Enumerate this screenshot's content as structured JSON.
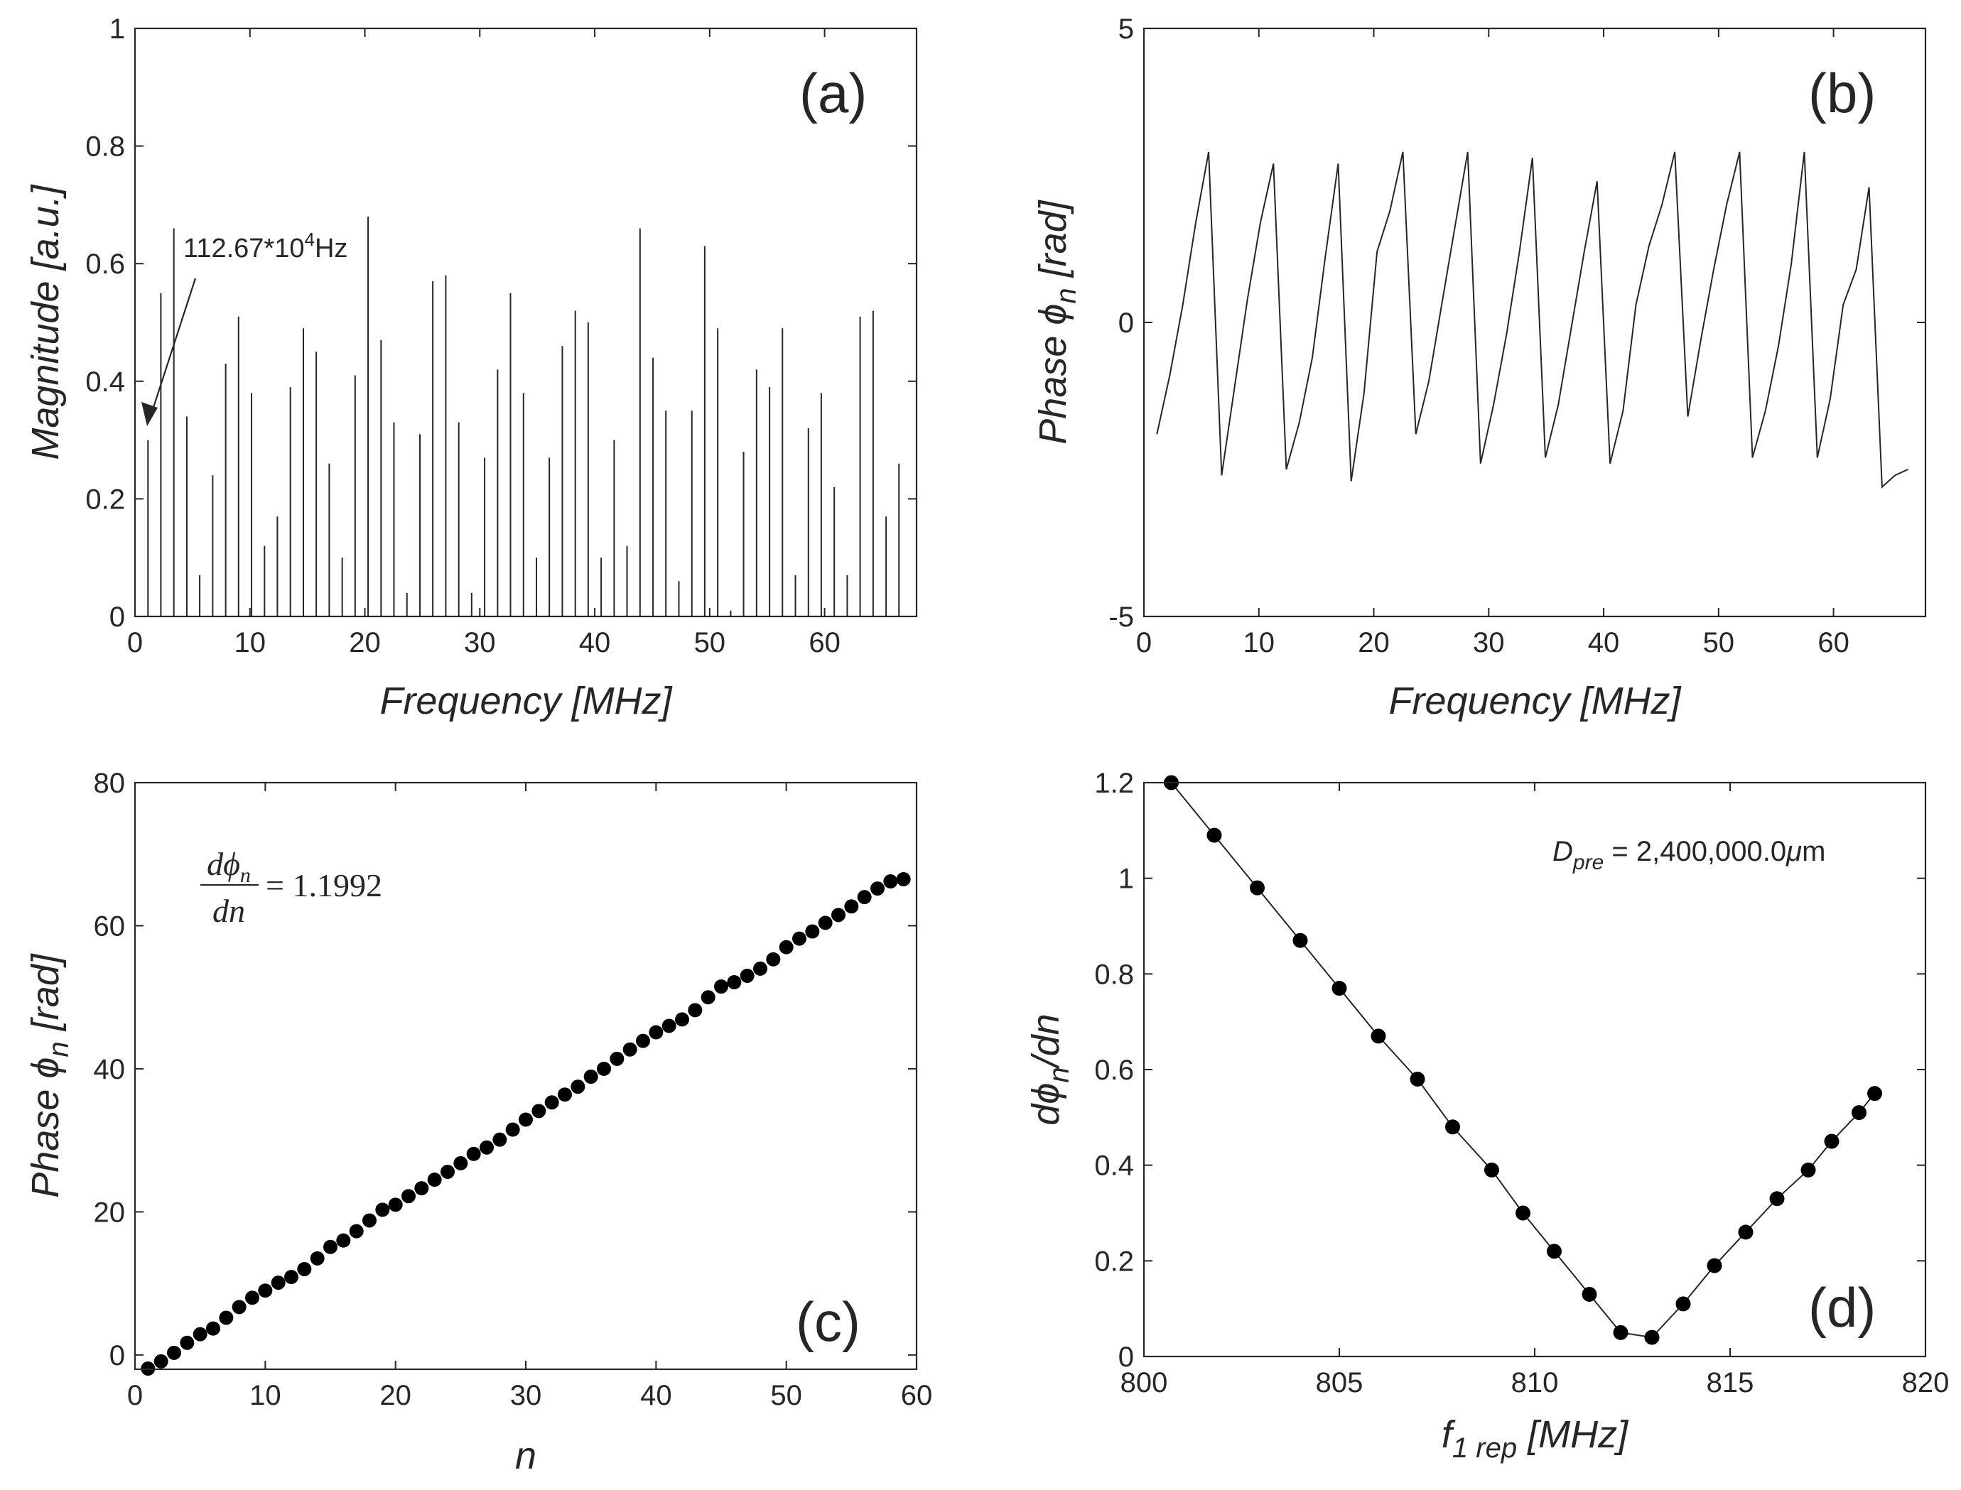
{
  "chart_data": [
    {
      "id": "a",
      "type": "bar",
      "panel_label": "(a)",
      "xlabel": "Frequency [MHz]",
      "ylabel": "Magnitude [a.u.]",
      "xlim": [
        0,
        68
      ],
      "ylim": [
        0,
        1
      ],
      "xticks": [
        0,
        10,
        20,
        30,
        40,
        50,
        60
      ],
      "yticks": [
        0,
        0.2,
        0.4,
        0.6,
        0.8,
        1
      ],
      "ytick_labels": [
        "0",
        "0.2",
        "0.4",
        "0.6",
        "0.8",
        "1"
      ],
      "annotation": {
        "base": "112.67*10",
        "sup": "4",
        "unit": "Hz",
        "x": 1.13,
        "y": 0.32
      },
      "x": [
        1.13,
        2.25,
        3.38,
        4.51,
        5.63,
        6.76,
        7.89,
        9.01,
        10.14,
        11.27,
        12.39,
        13.52,
        14.65,
        15.77,
        16.9,
        18.03,
        19.15,
        20.28,
        21.41,
        22.53,
        23.66,
        24.79,
        25.91,
        27.04,
        28.17,
        29.29,
        30.42,
        31.55,
        32.67,
        33.8,
        34.93,
        36.05,
        37.18,
        38.31,
        39.43,
        40.56,
        41.69,
        42.81,
        43.94,
        45.07,
        46.19,
        47.32,
        48.45,
        49.57,
        50.7,
        51.83,
        52.95,
        54.08,
        55.21,
        56.33,
        57.46,
        58.59,
        59.71,
        60.84,
        61.97,
        63.09,
        64.22,
        65.35,
        66.47
      ],
      "values": [
        0.3,
        0.55,
        0.66,
        0.34,
        0.07,
        0.24,
        0.43,
        0.51,
        0.38,
        0.12,
        0.17,
        0.39,
        0.49,
        0.45,
        0.26,
        0.1,
        0.41,
        0.68,
        0.47,
        0.33,
        0.04,
        0.31,
        0.57,
        0.58,
        0.33,
        0.04,
        0.27,
        0.42,
        0.55,
        0.38,
        0.1,
        0.27,
        0.46,
        0.52,
        0.5,
        0.1,
        0.3,
        0.12,
        0.66,
        0.44,
        0.35,
        0.06,
        0.35,
        0.63,
        0.49,
        0.01,
        0.28,
        0.42,
        0.39,
        0.49,
        0.07,
        0.32,
        0.38,
        0.22,
        0.07,
        0.51,
        0.52,
        0.17,
        0.26
      ]
    },
    {
      "id": "b",
      "type": "line",
      "panel_label": "(b)",
      "xlabel": "Frequency [MHz]",
      "ylabel_main": "Phase ",
      "ylabel_sym": "ϕ",
      "ylabel_sub": "n",
      "ylabel_unit": " [rad]",
      "xlim": [
        0,
        68
      ],
      "ylim": [
        -5,
        5
      ],
      "xticks": [
        0,
        10,
        20,
        30,
        40,
        50,
        60
      ],
      "yticks": [
        -5,
        0,
        5
      ],
      "x": [
        1.13,
        2.25,
        3.38,
        4.51,
        5.63,
        6.76,
        7.89,
        9.01,
        10.14,
        11.27,
        12.39,
        13.52,
        14.65,
        15.77,
        16.9,
        18.03,
        19.15,
        20.28,
        21.41,
        22.53,
        23.66,
        24.79,
        25.91,
        27.04,
        28.17,
        29.29,
        30.42,
        31.55,
        32.67,
        33.8,
        34.93,
        36.05,
        37.18,
        38.31,
        39.43,
        40.56,
        41.69,
        42.81,
        43.94,
        45.07,
        46.19,
        47.32,
        48.45,
        49.57,
        50.7,
        51.83,
        52.95,
        54.08,
        55.21,
        56.33,
        57.46,
        58.59,
        59.71,
        60.84,
        61.97,
        63.09,
        64.22,
        65.35,
        66.47
      ],
      "y": [
        -1.9,
        -0.9,
        0.3,
        1.7,
        2.9,
        -2.6,
        -1.1,
        0.4,
        1.7,
        2.7,
        -2.5,
        -1.7,
        -0.6,
        1.1,
        2.7,
        -2.7,
        -1.2,
        1.2,
        1.9,
        2.9,
        -1.9,
        -1.0,
        0.3,
        1.6,
        2.9,
        -2.4,
        -1.4,
        -0.2,
        1.2,
        2.8,
        -2.3,
        -1.4,
        -0.1,
        1.2,
        2.4,
        -2.4,
        -1.5,
        0.3,
        1.3,
        2.0,
        2.9,
        -1.6,
        -0.3,
        0.9,
        2.0,
        2.9,
        -2.3,
        -1.5,
        -0.4,
        1.0,
        2.9,
        -2.3,
        -1.3,
        0.3,
        0.9,
        2.3,
        -2.8,
        -2.6,
        -2.5
      ]
    },
    {
      "id": "c",
      "type": "scatter",
      "panel_label": "(c)",
      "xlabel": "n",
      "ylabel_main": "Phase ",
      "ylabel_sym": "ϕ",
      "ylabel_sub": "n",
      "ylabel_unit": " [rad]",
      "xlim": [
        0,
        60
      ],
      "ylim": [
        -2,
        80
      ],
      "xticks": [
        0,
        10,
        20,
        30,
        40,
        50,
        60
      ],
      "yticks": [
        0,
        20,
        40,
        60,
        80
      ],
      "equation": {
        "num_d": "d",
        "num_phi": "ϕ",
        "num_sub": "n",
        "den": "dn",
        "rhs": "= 1.1992"
      },
      "x": [
        1,
        2,
        3,
        4,
        5,
        6,
        7,
        8,
        9,
        10,
        11,
        12,
        13,
        14,
        15,
        16,
        17,
        18,
        19,
        20,
        21,
        22,
        23,
        24,
        25,
        26,
        27,
        28,
        29,
        30,
        31,
        32,
        33,
        34,
        35,
        36,
        37,
        38,
        39,
        40,
        41,
        42,
        43,
        44,
        45,
        46,
        47,
        48,
        49,
        50,
        51,
        52,
        53,
        54,
        55,
        56,
        57,
        58,
        59
      ],
      "y": [
        -1.9,
        -0.9,
        0.3,
        1.7,
        2.9,
        3.7,
        5.2,
        6.7,
        8.0,
        9.0,
        10.1,
        10.9,
        12.0,
        13.5,
        15.1,
        16.0,
        17.3,
        18.8,
        20.3,
        21.0,
        22.2,
        23.3,
        24.5,
        25.6,
        26.8,
        28.1,
        29.0,
        30.1,
        31.5,
        32.9,
        34.1,
        35.3,
        36.4,
        37.5,
        38.9,
        40.0,
        41.4,
        42.7,
        43.9,
        45.1,
        46.0,
        46.9,
        48.2,
        50.0,
        51.5,
        52.1,
        53.0,
        54.0,
        55.3,
        57.0,
        58.2,
        59.2,
        60.4,
        61.5,
        62.7,
        64.0,
        65.2,
        66.2,
        66.5
      ]
    },
    {
      "id": "d",
      "type": "line",
      "markers": true,
      "panel_label": "(d)",
      "xlabel_main": "f",
      "xlabel_sub": "1 rep",
      "xlabel_unit": " [MHz]",
      "ylabel_pre": "d",
      "ylabel_sym": "ϕ",
      "ylabel_sub": "n",
      "ylabel_post": "/dn",
      "xlim": [
        800,
        820
      ],
      "ylim": [
        0,
        1.2
      ],
      "xticks": [
        800,
        805,
        810,
        815,
        820
      ],
      "yticks": [
        0,
        0.2,
        0.4,
        0.6,
        0.8,
        1,
        1.2
      ],
      "ytick_labels": [
        "0",
        "0.2",
        "0.4",
        "0.6",
        "0.8",
        "1",
        "1.2"
      ],
      "annotation": {
        "main": "D",
        "sub": "pre",
        "rest": " = 2,400,000.0",
        "mu": "μ",
        "unit": "m"
      },
      "x": [
        800.7,
        801.8,
        802.9,
        804.0,
        805.0,
        806.0,
        807.0,
        807.9,
        808.9,
        809.7,
        810.5,
        811.4,
        812.2,
        813.0,
        813.8,
        814.6,
        815.4,
        816.2,
        817.0,
        817.6,
        818.3,
        818.7
      ],
      "y": [
        1.2,
        1.09,
        0.98,
        0.87,
        0.77,
        0.67,
        0.58,
        0.48,
        0.39,
        0.3,
        0.22,
        0.13,
        0.05,
        0.04,
        0.11,
        0.19,
        0.26,
        0.33,
        0.39,
        0.45,
        0.51,
        0.55
      ]
    }
  ]
}
